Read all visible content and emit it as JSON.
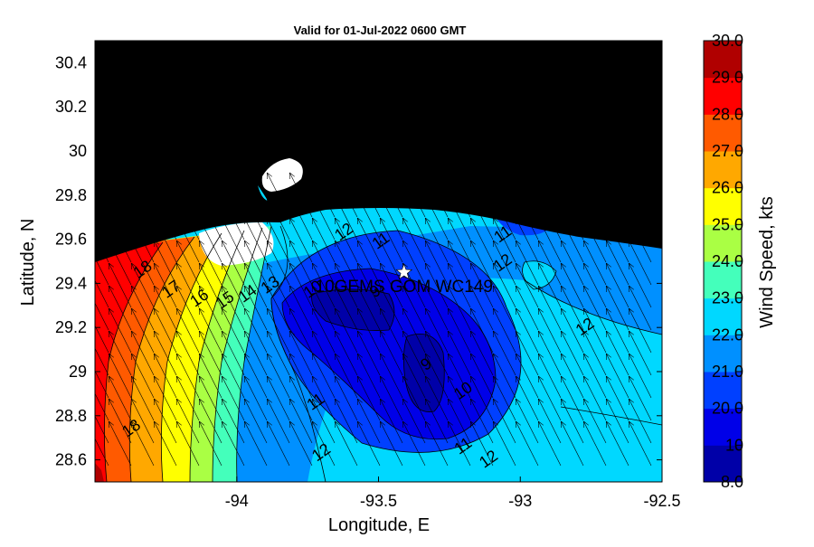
{
  "title": "Valid for 01-Jul-2022 0600 GMT",
  "xlabel": "Longitude, E",
  "ylabel": "Latitude, N",
  "xlim": [
    -94.5,
    -92.5
  ],
  "ylim": [
    28.5,
    30.5
  ],
  "xticks": [
    "-94",
    "-93.5",
    "-93",
    "-92.5"
  ],
  "yticks": [
    "28.6",
    "28.8",
    "29",
    "29.2",
    "29.4",
    "29.6",
    "29.8",
    "30",
    "30.2",
    "30.4"
  ],
  "station": {
    "label": "10GEMS GOM WC149",
    "lon": -93.41,
    "lat": 29.45
  },
  "contour_labels": [
    {
      "text": "18",
      "lon": -94.33,
      "lat": 29.46
    },
    {
      "text": "17",
      "lon": -94.23,
      "lat": 29.37
    },
    {
      "text": "16",
      "lon": -94.13,
      "lat": 29.33
    },
    {
      "text": "15",
      "lon": -94.04,
      "lat": 29.32
    },
    {
      "text": "14",
      "lon": -93.96,
      "lat": 29.35
    },
    {
      "text": "13",
      "lon": -93.88,
      "lat": 29.39
    },
    {
      "text": "12",
      "lon": -93.62,
      "lat": 29.63
    },
    {
      "text": "11",
      "lon": -93.49,
      "lat": 29.59
    },
    {
      "text": "10",
      "lon": -93.73,
      "lat": 29.37
    },
    {
      "text": "9",
      "lon": -93.51,
      "lat": 29.36
    },
    {
      "text": "11",
      "lon": -93.06,
      "lat": 29.62
    },
    {
      "text": "12",
      "lon": -93.06,
      "lat": 29.49
    },
    {
      "text": "12",
      "lon": -92.77,
      "lat": 29.2
    },
    {
      "text": "9",
      "lon": -93.33,
      "lat": 29.03
    },
    {
      "text": "10",
      "lon": -93.2,
      "lat": 28.91
    },
    {
      "text": "11",
      "lon": -93.72,
      "lat": 28.86
    },
    {
      "text": "11",
      "lon": -93.2,
      "lat": 28.66
    },
    {
      "text": "12",
      "lon": -93.7,
      "lat": 28.63
    },
    {
      "text": "12",
      "lon": -93.11,
      "lat": 28.6
    },
    {
      "text": "18",
      "lon": -94.37,
      "lat": 28.74
    }
  ],
  "colorbar": {
    "label": "Wind Speed, kts",
    "ticks": [
      "8.0",
      "10",
      "20.0",
      "21.0",
      "22.0",
      "23.0",
      "24.0",
      "25.0",
      "26.0",
      "27.0",
      "28.0",
      "29.0",
      "30.0"
    ],
    "colors": [
      "#0000a8",
      "#0000e8",
      "#0040ff",
      "#0090ff",
      "#00d8ff",
      "#44ffbb",
      "#aaff44",
      "#ffff00",
      "#ffa800",
      "#ff5a00",
      "#ff0000",
      "#b00000"
    ]
  },
  "colors": {
    "land": "#000000",
    "bay": "#ffffff",
    "star": "#ffffff"
  }
}
